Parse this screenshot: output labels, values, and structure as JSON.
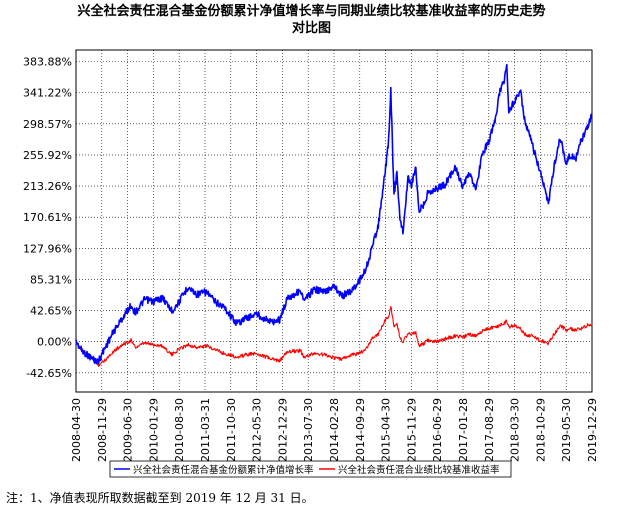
{
  "title": {
    "line1": "兴全社会责任混合基金份额累计净值增长率与同期业绩比较基准收益率的历史走势",
    "line2": "对比图"
  },
  "note": "注：1、净值表现所取数据截至到 2019 年 12 月 31 日。",
  "chart_data": {
    "type": "line",
    "title": "兴全社会责任混合基金份额累计净值增长率与同期业绩比较基准收益率的历史走势对比图",
    "xlabel": "",
    "ylabel": "",
    "ylim": [
      -85.3,
      383.88
    ],
    "yticks": [
      "383.88%",
      "341.22%",
      "298.57%",
      "255.92%",
      "213.26%",
      "170.61%",
      "127.96%",
      "85.31%",
      "42.65%",
      "0.00%",
      "-42.65%"
    ],
    "ytick_values": [
      383.88,
      341.22,
      298.57,
      255.92,
      213.26,
      170.61,
      127.96,
      85.31,
      42.65,
      0.0,
      -42.65
    ],
    "xticks": [
      "2008-04-30",
      "2008-11-29",
      "2009-06-30",
      "2010-01-29",
      "2010-08-30",
      "2011-03-31",
      "2011-10-30",
      "2012-05-30",
      "2012-12-29",
      "2013-07-30",
      "2014-02-28",
      "2014-09-29",
      "2015-04-30",
      "2015-11-29",
      "2016-06-29",
      "2017-01-28",
      "2017-08-29",
      "2018-03-30",
      "2018-10-29",
      "2019-05-30",
      "2019-12-29"
    ],
    "grid": true,
    "legend_position": "bottom",
    "colors": {
      "fund": "#0000ff",
      "benchmark": "#ff0000"
    },
    "series": [
      {
        "name": "兴全社会责任混合基金份额累计净值增长率",
        "color": "#0000ff",
        "points": [
          [
            "2008-04-30",
            0
          ],
          [
            "2008-06-15",
            -12
          ],
          [
            "2008-09-01",
            -22
          ],
          [
            "2008-10-28",
            -28
          ],
          [
            "2008-12-20",
            -10
          ],
          [
            "2009-03-01",
            12
          ],
          [
            "2009-05-01",
            28
          ],
          [
            "2009-07-28",
            50
          ],
          [
            "2009-09-01",
            40
          ],
          [
            "2009-11-20",
            58
          ],
          [
            "2010-01-29",
            55
          ],
          [
            "2010-04-15",
            60
          ],
          [
            "2010-07-01",
            42
          ],
          [
            "2010-08-30",
            55
          ],
          [
            "2010-11-10",
            75
          ],
          [
            "2011-01-20",
            65
          ],
          [
            "2011-04-15",
            68
          ],
          [
            "2011-06-20",
            55
          ],
          [
            "2011-09-01",
            48
          ],
          [
            "2011-10-30",
            35
          ],
          [
            "2011-12-20",
            25
          ],
          [
            "2012-03-01",
            32
          ],
          [
            "2012-05-30",
            38
          ],
          [
            "2012-08-01",
            32
          ],
          [
            "2012-10-01",
            27
          ],
          [
            "2012-12-05",
            30
          ],
          [
            "2013-02-10",
            60
          ],
          [
            "2013-05-28",
            70
          ],
          [
            "2013-06-25",
            55
          ],
          [
            "2013-09-15",
            72
          ],
          [
            "2013-12-20",
            68
          ],
          [
            "2014-02-28",
            78
          ],
          [
            "2014-05-01",
            62
          ],
          [
            "2014-07-25",
            70
          ],
          [
            "2014-09-29",
            85
          ],
          [
            "2014-11-20",
            100
          ],
          [
            "2015-01-10",
            130
          ],
          [
            "2015-03-01",
            160
          ],
          [
            "2015-04-10",
            210
          ],
          [
            "2015-05-25",
            275
          ],
          [
            "2015-06-12",
            345
          ],
          [
            "2015-07-08",
            200
          ],
          [
            "2015-08-01",
            230
          ],
          [
            "2015-08-26",
            170
          ],
          [
            "2015-09-20",
            150
          ],
          [
            "2015-11-01",
            225
          ],
          [
            "2015-11-29",
            215
          ],
          [
            "2016-01-05",
            240
          ],
          [
            "2016-01-28",
            180
          ],
          [
            "2016-03-01",
            185
          ],
          [
            "2016-04-15",
            205
          ],
          [
            "2016-06-29",
            210
          ],
          [
            "2016-09-01",
            215
          ],
          [
            "2016-11-25",
            240
          ],
          [
            "2017-01-28",
            210
          ],
          [
            "2017-03-15",
            230
          ],
          [
            "2017-05-20",
            210
          ],
          [
            "2017-07-01",
            255
          ],
          [
            "2017-08-29",
            275
          ],
          [
            "2017-10-15",
            300
          ],
          [
            "2017-11-25",
            340
          ],
          [
            "2018-01-05",
            360
          ],
          [
            "2018-01-25",
            380
          ],
          [
            "2018-02-10",
            315
          ],
          [
            "2018-03-30",
            330
          ],
          [
            "2018-05-15",
            345
          ],
          [
            "2018-06-25",
            300
          ],
          [
            "2018-08-15",
            275
          ],
          [
            "2018-10-29",
            230
          ],
          [
            "2019-01-03",
            190
          ],
          [
            "2019-02-25",
            245
          ],
          [
            "2019-04-10",
            280
          ],
          [
            "2019-05-30",
            245
          ],
          [
            "2019-07-01",
            255
          ],
          [
            "2019-08-15",
            250
          ],
          [
            "2019-10-01",
            275
          ],
          [
            "2019-11-15",
            290
          ],
          [
            "2019-12-29",
            310
          ]
        ]
      },
      {
        "name": "兴全社会责任混合业绩比较基准收益率",
        "color": "#ff0000",
        "points": [
          [
            "2008-04-30",
            0
          ],
          [
            "2008-06-15",
            -10
          ],
          [
            "2008-09-01",
            -22
          ],
          [
            "2008-10-28",
            -32
          ],
          [
            "2008-12-20",
            -26
          ],
          [
            "2009-03-01",
            -14
          ],
          [
            "2009-05-01",
            -6
          ],
          [
            "2009-07-28",
            2
          ],
          [
            "2009-09-01",
            -8
          ],
          [
            "2009-11-20",
            -2
          ],
          [
            "2010-01-29",
            -4
          ],
          [
            "2010-04-15",
            -6
          ],
          [
            "2010-07-01",
            -18
          ],
          [
            "2010-08-30",
            -10
          ],
          [
            "2010-11-10",
            -4
          ],
          [
            "2011-01-20",
            -8
          ],
          [
            "2011-04-15",
            -6
          ],
          [
            "2011-06-20",
            -10
          ],
          [
            "2011-09-01",
            -16
          ],
          [
            "2011-10-30",
            -18
          ],
          [
            "2011-12-20",
            -22
          ],
          [
            "2012-03-01",
            -18
          ],
          [
            "2012-05-30",
            -16
          ],
          [
            "2012-08-01",
            -20
          ],
          [
            "2012-10-01",
            -24
          ],
          [
            "2012-12-05",
            -26
          ],
          [
            "2013-02-10",
            -14
          ],
          [
            "2013-05-28",
            -12
          ],
          [
            "2013-06-25",
            -22
          ],
          [
            "2013-09-15",
            -16
          ],
          [
            "2013-12-20",
            -18
          ],
          [
            "2014-02-28",
            -22
          ],
          [
            "2014-05-01",
            -24
          ],
          [
            "2014-07-25",
            -18
          ],
          [
            "2014-09-29",
            -16
          ],
          [
            "2014-11-20",
            -10
          ],
          [
            "2015-01-10",
            5
          ],
          [
            "2015-03-01",
            10
          ],
          [
            "2015-04-10",
            25
          ],
          [
            "2015-05-25",
            35
          ],
          [
            "2015-06-12",
            48
          ],
          [
            "2015-07-08",
            22
          ],
          [
            "2015-08-01",
            25
          ],
          [
            "2015-08-26",
            5
          ],
          [
            "2015-09-20",
            0
          ],
          [
            "2015-11-01",
            12
          ],
          [
            "2015-11-29",
            10
          ],
          [
            "2016-01-05",
            12
          ],
          [
            "2016-01-28",
            -5
          ],
          [
            "2016-03-01",
            -4
          ],
          [
            "2016-04-15",
            2
          ],
          [
            "2016-06-29",
            0
          ],
          [
            "2016-09-01",
            4
          ],
          [
            "2016-11-25",
            8
          ],
          [
            "2017-01-28",
            6
          ],
          [
            "2017-03-15",
            10
          ],
          [
            "2017-05-20",
            8
          ],
          [
            "2017-07-01",
            14
          ],
          [
            "2017-08-29",
            18
          ],
          [
            "2017-10-15",
            20
          ],
          [
            "2017-11-25",
            22
          ],
          [
            "2018-01-05",
            26
          ],
          [
            "2018-01-25",
            28
          ],
          [
            "2018-02-10",
            20
          ],
          [
            "2018-03-30",
            22
          ],
          [
            "2018-05-15",
            18
          ],
          [
            "2018-06-25",
            10
          ],
          [
            "2018-08-15",
            8
          ],
          [
            "2018-10-29",
            2
          ],
          [
            "2019-01-03",
            -2
          ],
          [
            "2019-02-25",
            12
          ],
          [
            "2019-04-10",
            22
          ],
          [
            "2019-05-30",
            16
          ],
          [
            "2019-07-01",
            18
          ],
          [
            "2019-08-15",
            16
          ],
          [
            "2019-10-01",
            18
          ],
          [
            "2019-11-15",
            22
          ],
          [
            "2019-12-29",
            24
          ]
        ]
      }
    ]
  }
}
